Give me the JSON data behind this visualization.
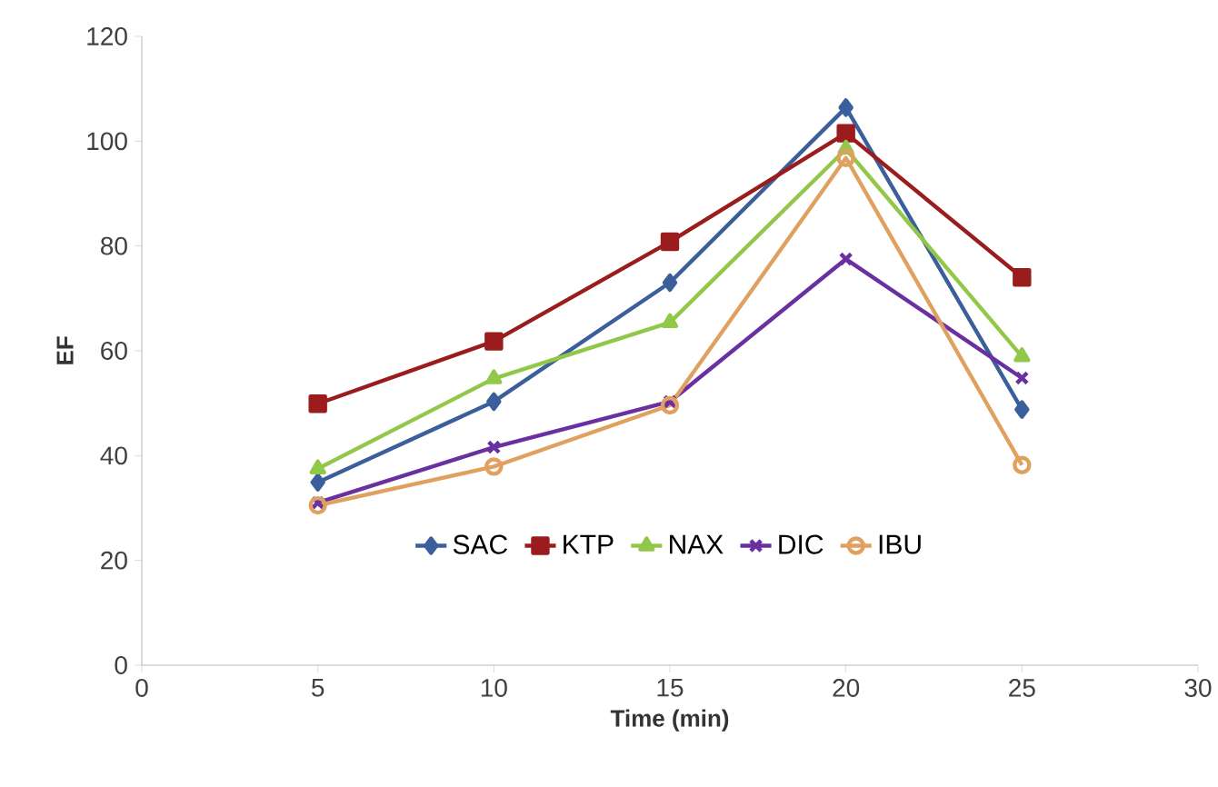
{
  "chart_data": {
    "type": "line",
    "xlabel": "Time (min)",
    "ylabel": "EF",
    "x": [
      5,
      10,
      15,
      20,
      25
    ],
    "series": [
      {
        "name": "SAC",
        "color": "#3a5f9a",
        "marker": "diamond",
        "values": [
          34.9,
          50.3,
          73,
          106.4,
          48.8
        ]
      },
      {
        "name": "KTP",
        "color": "#9b1c1c",
        "marker": "square",
        "values": [
          49.9,
          61.8,
          80.8,
          101.5,
          74
        ]
      },
      {
        "name": "NAX",
        "color": "#92c84a",
        "marker": "triangle",
        "values": [
          37.5,
          54.7,
          65.4,
          98.5,
          58.9
        ]
      },
      {
        "name": "DIC",
        "color": "#6a2fa0",
        "marker": "cross",
        "values": [
          31,
          41.6,
          50.3,
          77.5,
          54.8
        ]
      },
      {
        "name": "IBU",
        "color": "#e0a060",
        "marker": "circle",
        "values": [
          30.5,
          37.9,
          49.6,
          96.8,
          38.2
        ]
      }
    ],
    "xlim": [
      0,
      30
    ],
    "xticks": [
      0,
      5,
      10,
      15,
      20,
      25,
      30
    ],
    "ylim": [
      0,
      120
    ],
    "yticks": [
      0,
      20,
      40,
      60,
      80,
      100,
      120
    ],
    "grid": false,
    "legend": "bottom",
    "line_style": "solid"
  }
}
